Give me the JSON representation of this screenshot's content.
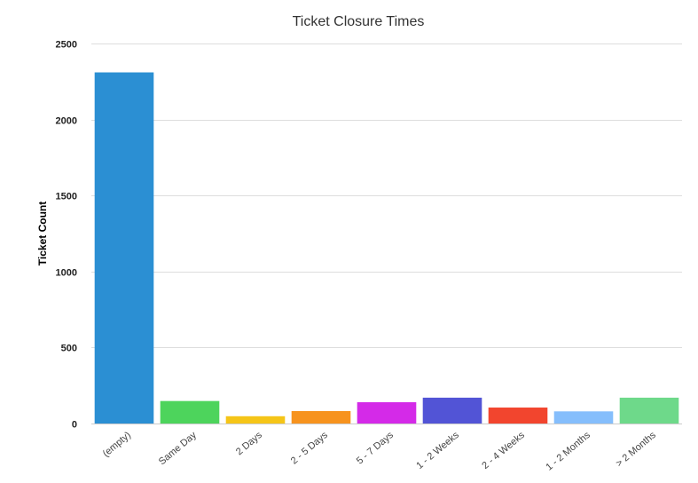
{
  "chart_data": {
    "type": "bar",
    "title": "Ticket Closure Times",
    "xlabel": "",
    "ylabel": "Ticket Count",
    "categories": [
      "(empty)",
      "Same Day",
      "2 Days",
      "2 - 5 Days",
      "5 - 7 Days",
      "1 - 2 Weeks",
      "2 - 4 Weeks",
      "1 - 2 Months",
      "> 2 Months"
    ],
    "values": [
      2310,
      148,
      48,
      82,
      140,
      170,
      105,
      80,
      170
    ],
    "colors": [
      "#2B8FD3",
      "#4DD45C",
      "#F5C518",
      "#F7931E",
      "#D42AE8",
      "#5254D6",
      "#F2452E",
      "#85BEFC",
      "#6ED98A"
    ],
    "ylim": [
      0,
      2500
    ],
    "yticks": [
      0,
      500,
      1000,
      1500,
      2000,
      2500
    ],
    "grid": true,
    "legend": "none"
  }
}
